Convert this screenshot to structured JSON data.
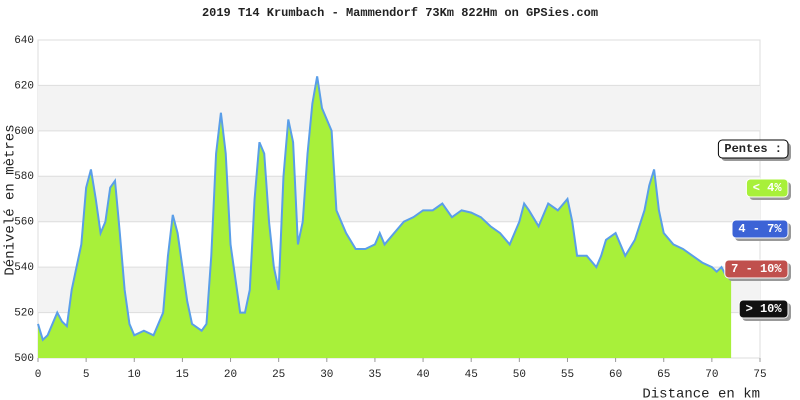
{
  "chart_data": {
    "type": "area",
    "title": "2019 T14 Krumbach - Mammendorf 73Km 822Hm on GPSies.com",
    "y_label": "Dénivelé en mètres",
    "x_label": "Distance en km",
    "x": [
      0,
      0.5,
      1,
      2,
      2.5,
      3,
      3.5,
      4,
      4.5,
      5,
      5.5,
      6,
      6.5,
      7,
      7.5,
      8,
      8.5,
      9,
      9.5,
      10,
      11,
      12,
      12.5,
      13,
      13.5,
      14,
      14.5,
      15,
      15.5,
      16,
      17,
      17.5,
      18,
      18.5,
      19,
      19.5,
      20,
      20.5,
      21,
      21.5,
      22,
      22.5,
      23,
      23.5,
      24,
      24.5,
      25,
      25.5,
      26,
      26.5,
      27,
      27.5,
      28,
      28.5,
      29,
      29.5,
      30,
      30.5,
      31,
      32,
      33,
      34,
      35,
      35.5,
      36,
      37,
      38,
      39,
      40,
      41,
      42,
      43,
      44,
      45,
      46,
      47,
      48,
      49,
      50,
      50.5,
      51,
      52,
      53,
      54,
      55,
      55.5,
      56,
      57,
      58,
      58.5,
      59,
      60,
      61,
      62,
      63,
      63.5,
      64,
      64.5,
      65,
      66,
      67,
      68,
      69,
      70,
      70.5,
      71,
      71.5,
      72
    ],
    "values": [
      515,
      508,
      510,
      520,
      516,
      514,
      530,
      540,
      550,
      575,
      583,
      570,
      555,
      560,
      575,
      578,
      555,
      530,
      515,
      510,
      512,
      510,
      515,
      520,
      545,
      563,
      555,
      540,
      525,
      515,
      512,
      515,
      545,
      590,
      608,
      590,
      550,
      535,
      520,
      520,
      530,
      570,
      595,
      590,
      560,
      540,
      530,
      580,
      605,
      595,
      550,
      560,
      590,
      612,
      624,
      610,
      605,
      600,
      565,
      555,
      548,
      548,
      550,
      555,
      550,
      555,
      560,
      562,
      565,
      565,
      568,
      562,
      565,
      564,
      562,
      558,
      555,
      550,
      560,
      568,
      565,
      558,
      568,
      565,
      570,
      560,
      545,
      545,
      540,
      545,
      552,
      555,
      545,
      552,
      565,
      576,
      583,
      565,
      555,
      550,
      548,
      545,
      542,
      540,
      538,
      540,
      536,
      538
    ],
    "fill_color": "#a8f03a",
    "line_color": "#5a9ee8",
    "xlim": [
      0,
      75
    ],
    "xticks": [
      0,
      5,
      10,
      15,
      20,
      25,
      30,
      35,
      40,
      45,
      50,
      55,
      60,
      65,
      70,
      75
    ],
    "ylim": [
      500,
      640
    ],
    "yticks": [
      500,
      520,
      540,
      560,
      580,
      600,
      620,
      640
    ],
    "grid": true,
    "legend": {
      "title": "Pentes :",
      "items": [
        {
          "label": "< 4%",
          "color": "#a8f03a"
        },
        {
          "label": "4 - 7%",
          "color": "#3c63d6"
        },
        {
          "label": "7 - 10%",
          "color": "#c0504d"
        },
        {
          "label": "> 10%",
          "color": "#111111"
        }
      ]
    }
  }
}
